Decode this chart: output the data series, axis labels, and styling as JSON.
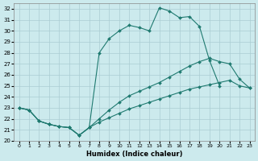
{
  "xlabel": "Humidex (Indice chaleur)",
  "xlim": [
    -0.5,
    23.5
  ],
  "ylim": [
    20,
    32.5
  ],
  "xticks": [
    0,
    1,
    2,
    3,
    4,
    5,
    6,
    7,
    8,
    9,
    10,
    11,
    12,
    13,
    14,
    15,
    16,
    17,
    18,
    19,
    20,
    21,
    22,
    23
  ],
  "yticks": [
    20,
    21,
    22,
    23,
    24,
    25,
    26,
    27,
    28,
    29,
    30,
    31,
    32
  ],
  "bg_color": "#cceaed",
  "grid_color": "#aacdd2",
  "line_color": "#1f7a70",
  "lines": [
    {
      "x": [
        0,
        1,
        2,
        3,
        4,
        5,
        6,
        7,
        8,
        9,
        10,
        11,
        12,
        13,
        14,
        15,
        16,
        17,
        18,
        19,
        20
      ],
      "y": [
        23.0,
        22.8,
        21.8,
        21.5,
        21.3,
        21.2,
        20.5,
        21.2,
        28.0,
        29.3,
        30.0,
        30.5,
        30.3,
        30.0,
        32.1,
        31.8,
        31.2,
        31.3,
        30.4,
        27.3,
        25.0
      ]
    },
    {
      "x": [
        0,
        1,
        2,
        3,
        4,
        5,
        6,
        7,
        8,
        9,
        10,
        11,
        12,
        13,
        14,
        15,
        16,
        17,
        18,
        19,
        20,
        21,
        22,
        23
      ],
      "y": [
        23.0,
        22.8,
        21.8,
        21.5,
        21.3,
        21.2,
        20.5,
        21.2,
        22.0,
        22.8,
        23.5,
        24.1,
        24.5,
        24.9,
        25.3,
        25.8,
        26.3,
        26.8,
        27.2,
        27.5,
        27.2,
        27.0,
        25.6,
        24.8
      ]
    },
    {
      "x": [
        0,
        1,
        2,
        3,
        4,
        5,
        6,
        7,
        8,
        9,
        10,
        11,
        12,
        13,
        14,
        15,
        16,
        17,
        18,
        19,
        20,
        21,
        22,
        23
      ],
      "y": [
        23.0,
        22.8,
        21.8,
        21.5,
        21.3,
        21.2,
        20.5,
        21.2,
        21.7,
        22.1,
        22.5,
        22.9,
        23.2,
        23.5,
        23.8,
        24.1,
        24.4,
        24.7,
        24.9,
        25.1,
        25.3,
        25.5,
        25.0,
        24.8
      ]
    }
  ]
}
